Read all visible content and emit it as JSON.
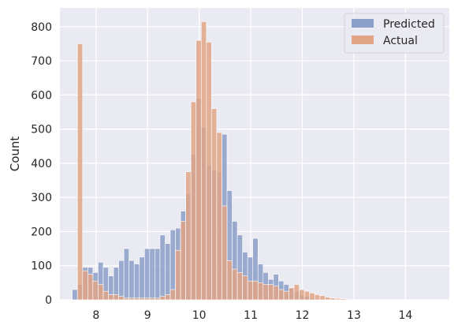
{
  "chart_data": {
    "type": "histogram",
    "ylabel": "Count",
    "xlabel": "",
    "xlim": [
      7.3,
      14.85
    ],
    "ylim": [
      0,
      855
    ],
    "xticks": [
      8,
      9,
      10,
      11,
      12,
      13,
      14
    ],
    "yticks": [
      0,
      100,
      200,
      300,
      400,
      500,
      600,
      700,
      800
    ],
    "grid": true,
    "legend_position": "top-right",
    "bin_start": 7.54,
    "bin_width": 0.1,
    "series": [
      {
        "name": "Predicted",
        "color": "#8c9fc9",
        "values": [
          30,
          45,
          95,
          95,
          80,
          110,
          95,
          70,
          95,
          115,
          150,
          115,
          105,
          125,
          150,
          150,
          150,
          190,
          165,
          205,
          210,
          260,
          310,
          425,
          590,
          505,
          395,
          380,
          375,
          485,
          320,
          230,
          190,
          140,
          125,
          180,
          105,
          80,
          60,
          75,
          55,
          45,
          35,
          25,
          15,
          10,
          5,
          3,
          2,
          1,
          0,
          0,
          0,
          0,
          0,
          0,
          0,
          0,
          0,
          0,
          0,
          0,
          0,
          0,
          0,
          0,
          0,
          0,
          0,
          0
        ]
      },
      {
        "name": "Actual",
        "color": "#e0a487",
        "values": [
          0,
          750,
          85,
          75,
          55,
          45,
          25,
          15,
          15,
          10,
          5,
          5,
          5,
          5,
          5,
          5,
          5,
          10,
          15,
          30,
          145,
          230,
          375,
          580,
          760,
          815,
          755,
          560,
          490,
          275,
          115,
          90,
          80,
          70,
          55,
          55,
          50,
          45,
          45,
          40,
          30,
          25,
          35,
          45,
          30,
          25,
          20,
          15,
          12,
          8,
          5,
          4,
          3,
          2,
          1,
          0,
          0,
          0,
          0,
          0,
          0,
          0,
          0,
          0,
          0,
          0,
          0,
          0,
          0,
          0
        ]
      }
    ]
  }
}
